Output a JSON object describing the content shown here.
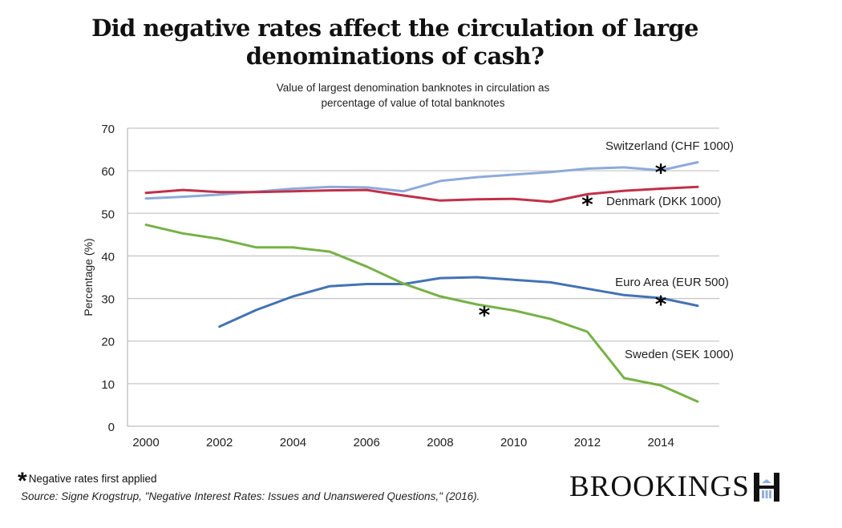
{
  "title_line1": "Did negative rates affect the circulation of large",
  "title_line2": "denominations of cash?",
  "subtitle_line1": "Value of largest denomination banknotes in circulation as",
  "subtitle_line2": "percentage of value of total banknotes",
  "footnote": {
    "symbol": "*",
    "text": "Negative rates first applied"
  },
  "source": "Source: Signe Krogstrup, \"Negative Interest Rates: Issues and Unanswered Questions,\" (2016).",
  "logo": {
    "text": "BROOKINGS",
    "icon": "brookings-building-icon"
  },
  "chart_data": {
    "type": "line",
    "title": "Did negative rates affect the circulation of large denominations of cash?",
    "subtitle": "Value of largest denomination banknotes in circulation as percentage of value of total banknotes",
    "xlabel": "",
    "ylabel": "Percentage (%)",
    "x": [
      2000,
      2001,
      2002,
      2003,
      2004,
      2005,
      2006,
      2007,
      2008,
      2009,
      2010,
      2011,
      2012,
      2013,
      2014,
      2015
    ],
    "xticks": [
      2000,
      2002,
      2004,
      2006,
      2008,
      2010,
      2012,
      2014
    ],
    "xtick_labels": [
      "2000",
      "2002",
      "2004",
      "2006",
      "2008",
      "2010",
      "2012",
      "2014"
    ],
    "xlim": [
      2000,
      2015
    ],
    "ylim": [
      0,
      70
    ],
    "yticks": [
      0,
      10,
      20,
      30,
      40,
      50,
      60,
      70
    ],
    "ytick_labels": [
      "0",
      "10",
      "20",
      "30",
      "40",
      "50",
      "60",
      "70"
    ],
    "grid": "horizontal",
    "legend": "inline labels",
    "series": [
      {
        "name": "Switzerland (CHF 1000)",
        "color": "#8eaadb",
        "values": [
          53.5,
          53.9,
          54.4,
          55.1,
          55.8,
          56.2,
          56.1,
          55.2,
          57.6,
          58.5,
          59.1,
          59.7,
          60.5,
          60.8,
          60.1,
          62.0
        ],
        "negative_rates_year": 2014,
        "negative_rates_value": 60.5
      },
      {
        "name": "Denmark (DKK 1000)",
        "color": "#c0304a",
        "values": [
          54.8,
          55.5,
          55.0,
          55.0,
          55.2,
          55.4,
          55.5,
          54.2,
          53.0,
          53.3,
          53.4,
          52.7,
          54.5,
          55.3,
          55.8,
          56.2
        ],
        "negative_rates_year": 2012,
        "negative_rates_value": 53.0
      },
      {
        "name": "Euro Area (EUR 500)",
        "color": "#4472b4",
        "values": [
          null,
          null,
          23.4,
          27.3,
          30.5,
          32.9,
          33.4,
          33.4,
          34.8,
          35.0,
          34.4,
          33.8,
          32.3,
          30.8,
          30.1,
          28.3
        ],
        "negative_rates_year": 2014,
        "negative_rates_value": 29.5
      },
      {
        "name": "Sweden (SEK 1000)",
        "color": "#77b145",
        "values": [
          47.3,
          45.3,
          44.0,
          42.0,
          42.0,
          41.0,
          37.5,
          33.5,
          30.5,
          28.6,
          27.2,
          25.2,
          22.2,
          11.3,
          9.6,
          5.8
        ],
        "negative_rates_year": 2009.2,
        "negative_rates_value": 27.0
      }
    ]
  }
}
